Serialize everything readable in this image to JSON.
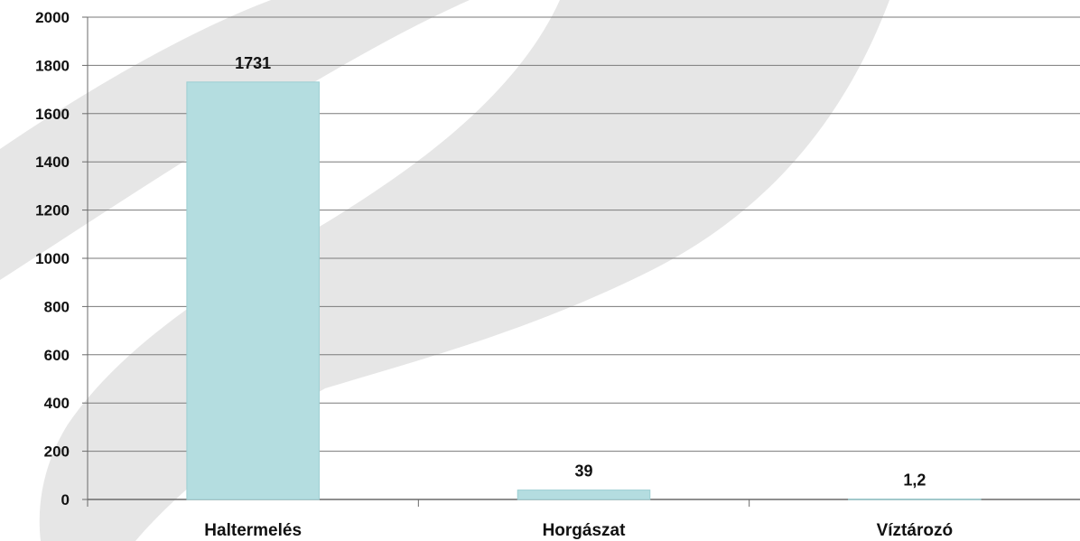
{
  "chart_data": {
    "type": "bar",
    "categories": [
      "Haltermelés",
      "Horgászat",
      "Víztározó"
    ],
    "values": [
      1731,
      39,
      1.2
    ],
    "data_labels": [
      "1731",
      "39",
      "1,2"
    ],
    "y_ticks": [
      "0",
      "200",
      "400",
      "600",
      "800",
      "1000",
      "1200",
      "1400",
      "1600",
      "1800",
      "2000"
    ],
    "ylim": [
      0,
      2000
    ],
    "grid": true,
    "colors": {
      "bar": "#b4dde0",
      "bar_edge": "#9ccfd3",
      "grid": "#7a7a7a",
      "axis": "#6a6a6a",
      "background_band": "#e6e6e6"
    }
  }
}
